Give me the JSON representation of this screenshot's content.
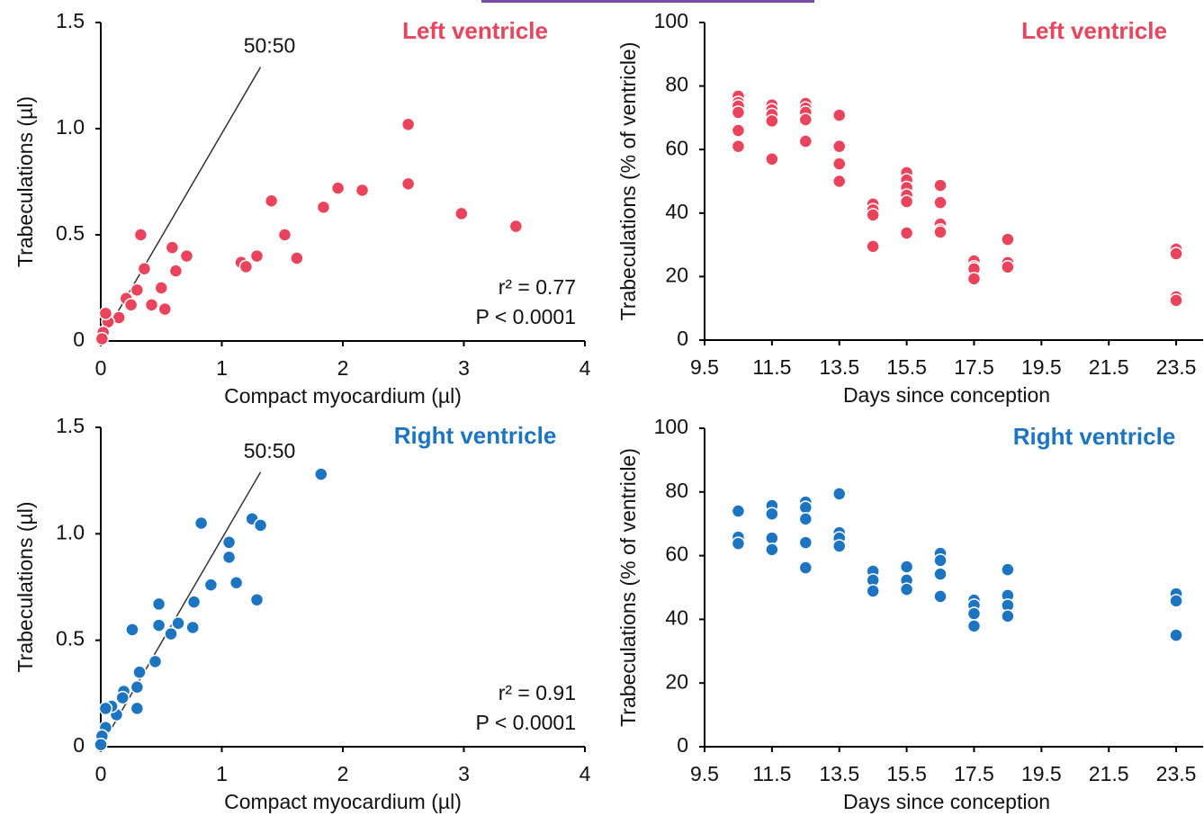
{
  "chart_data": [
    {
      "type": "scatter",
      "title": "Left ventricle",
      "xlabel": "Compact myocardium (µl)",
      "ylabel": "Trabeculations (µl)",
      "color": "#e9445c",
      "xlim": [
        0,
        4
      ],
      "xticks": [
        0,
        1,
        2,
        3,
        4
      ],
      "ylim": [
        0,
        1.5
      ],
      "yticks": [
        0,
        0.5,
        {
          "value": 1,
          "label": "1.0"
        },
        1.5
      ],
      "reference_line": {
        "label": "50:50",
        "x": [
          0,
          1.32
        ],
        "y": [
          0,
          1.29
        ]
      },
      "annotations": [
        "r² = 0.77",
        "P < 0.0001"
      ],
      "x": [
        2.54,
        2.54,
        1.96,
        2.16,
        1.84,
        1.41,
        2.98,
        3.43,
        0.33,
        1.52,
        0.59,
        0.71,
        1.29,
        1.16,
        1.2,
        1.62,
        0.36,
        0.62,
        0.5,
        0.3,
        0.42,
        0.53,
        0.21,
        0.25,
        0.15,
        0.06,
        0.02,
        0.04,
        0.01
      ],
      "values": [
        1.02,
        0.74,
        0.72,
        0.71,
        0.63,
        0.66,
        0.6,
        0.54,
        0.5,
        0.5,
        0.44,
        0.4,
        0.4,
        0.37,
        0.35,
        0.39,
        0.34,
        0.33,
        0.25,
        0.24,
        0.17,
        0.15,
        0.2,
        0.17,
        0.11,
        0.09,
        0.04,
        0.13,
        0.01
      ]
    },
    {
      "type": "scatter",
      "title": "Left ventricle",
      "xlabel": "Days since conception",
      "ylabel": "Trabeculations (% of ventricle)",
      "color": "#e9445c",
      "xlim": [
        9.5,
        24.3
      ],
      "xticks": [
        9.5,
        11.5,
        13.5,
        15.5,
        17.5,
        19.5,
        21.5,
        23.5
      ],
      "ylim": [
        0,
        100
      ],
      "yticks": [
        0,
        20,
        40,
        60,
        80,
        100
      ],
      "x": [
        10.5,
        10.5,
        10.5,
        10.5,
        10.5,
        10.5,
        11.5,
        11.5,
        11.5,
        11.5,
        11.5,
        12.5,
        12.5,
        12.5,
        12.5,
        12.5,
        13.5,
        13.5,
        13.5,
        13.5,
        14.5,
        14.5,
        14.5,
        14.5,
        15.5,
        15.5,
        15.5,
        15.5,
        15.5,
        15.5,
        16.5,
        16.5,
        16.5,
        16.5,
        16.5,
        17.5,
        17.5,
        17.5,
        17.5,
        18.5,
        18.5,
        18.5,
        23.5,
        23.5,
        23.5,
        23.5
      ],
      "values": [
        76.8,
        74.8,
        73.7,
        71.7,
        66,
        61,
        74,
        72.5,
        71,
        69,
        57,
        74.5,
        73,
        71.7,
        69.4,
        62.6,
        70.8,
        61,
        55.5,
        50,
        42.8,
        41,
        39.4,
        29.5,
        52.7,
        50.4,
        48,
        45.6,
        43.6,
        33.7,
        48.7,
        43.3,
        36.5,
        34.6,
        34,
        24.9,
        23,
        22.4,
        19.3,
        31.7,
        24.4,
        23,
        28.6,
        27.2,
        13.6,
        12.5
      ]
    },
    {
      "type": "scatter",
      "title": "Right ventricle",
      "xlabel": "Compact myocardium (µl)",
      "ylabel": "Trabeculations (µl)",
      "color": "#1d74c0",
      "xlim": [
        0,
        4
      ],
      "xticks": [
        0,
        1,
        2,
        3,
        4
      ],
      "ylim": [
        0,
        1.5
      ],
      "yticks": [
        0,
        0.5,
        {
          "value": 1,
          "label": "1.0"
        },
        1.5
      ],
      "reference_line": {
        "label": "50:50",
        "x": [
          0,
          1.32
        ],
        "y": [
          0,
          1.29
        ]
      },
      "annotations": [
        "r² = 0.91",
        "P < 0.0001"
      ],
      "x": [
        1.82,
        0.83,
        1.25,
        1.32,
        1.06,
        1.06,
        0.91,
        1.12,
        1.29,
        0.77,
        0.48,
        0.26,
        0.48,
        0.64,
        0.58,
        0.76,
        0.45,
        0.32,
        0.3,
        0.3,
        0.19,
        0.18,
        0.13,
        0.09,
        0.04,
        0.04,
        0.01,
        0.0
      ],
      "values": [
        1.28,
        1.05,
        1.07,
        1.04,
        0.96,
        0.89,
        0.76,
        0.77,
        0.69,
        0.68,
        0.67,
        0.55,
        0.57,
        0.58,
        0.53,
        0.56,
        0.4,
        0.35,
        0.28,
        0.18,
        0.26,
        0.23,
        0.15,
        0.19,
        0.18,
        0.09,
        0.05,
        0.01
      ]
    },
    {
      "type": "scatter",
      "title": "Right ventricle",
      "xlabel": "Days since conception",
      "ylabel": "Trabeculations (% of ventricle)",
      "color": "#1d74c0",
      "xlim": [
        9.5,
        24.3
      ],
      "xticks": [
        9.5,
        11.5,
        13.5,
        15.5,
        17.5,
        19.5,
        21.5,
        23.5
      ],
      "ylim": [
        0,
        100
      ],
      "yticks": [
        0,
        20,
        40,
        60,
        80,
        100
      ],
      "x": [
        10.5,
        10.5,
        10.5,
        11.5,
        11.5,
        11.5,
        11.5,
        12.5,
        12.5,
        12.5,
        12.5,
        12.5,
        13.5,
        13.5,
        13.5,
        13.5,
        14.5,
        14.5,
        14.5,
        15.5,
        15.5,
        15.5,
        16.5,
        16.5,
        16.5,
        16.5,
        17.5,
        17.5,
        17.5,
        17.5,
        18.5,
        18.5,
        18.5,
        18.5,
        23.5,
        23.5,
        23.5
      ],
      "values": [
        74,
        65.8,
        63.8,
        75.7,
        73.1,
        65.5,
        61.9,
        76.8,
        75.1,
        71.5,
        64.1,
        56.2,
        79.4,
        67.2,
        65.5,
        63,
        55.1,
        52.3,
        48.9,
        56.5,
        52.3,
        49.4,
        60.7,
        58.5,
        54.2,
        47.2,
        46,
        44.4,
        41.8,
        37.9,
        55.6,
        47.5,
        44.4,
        41,
        48,
        45.8,
        35
      ]
    }
  ]
}
